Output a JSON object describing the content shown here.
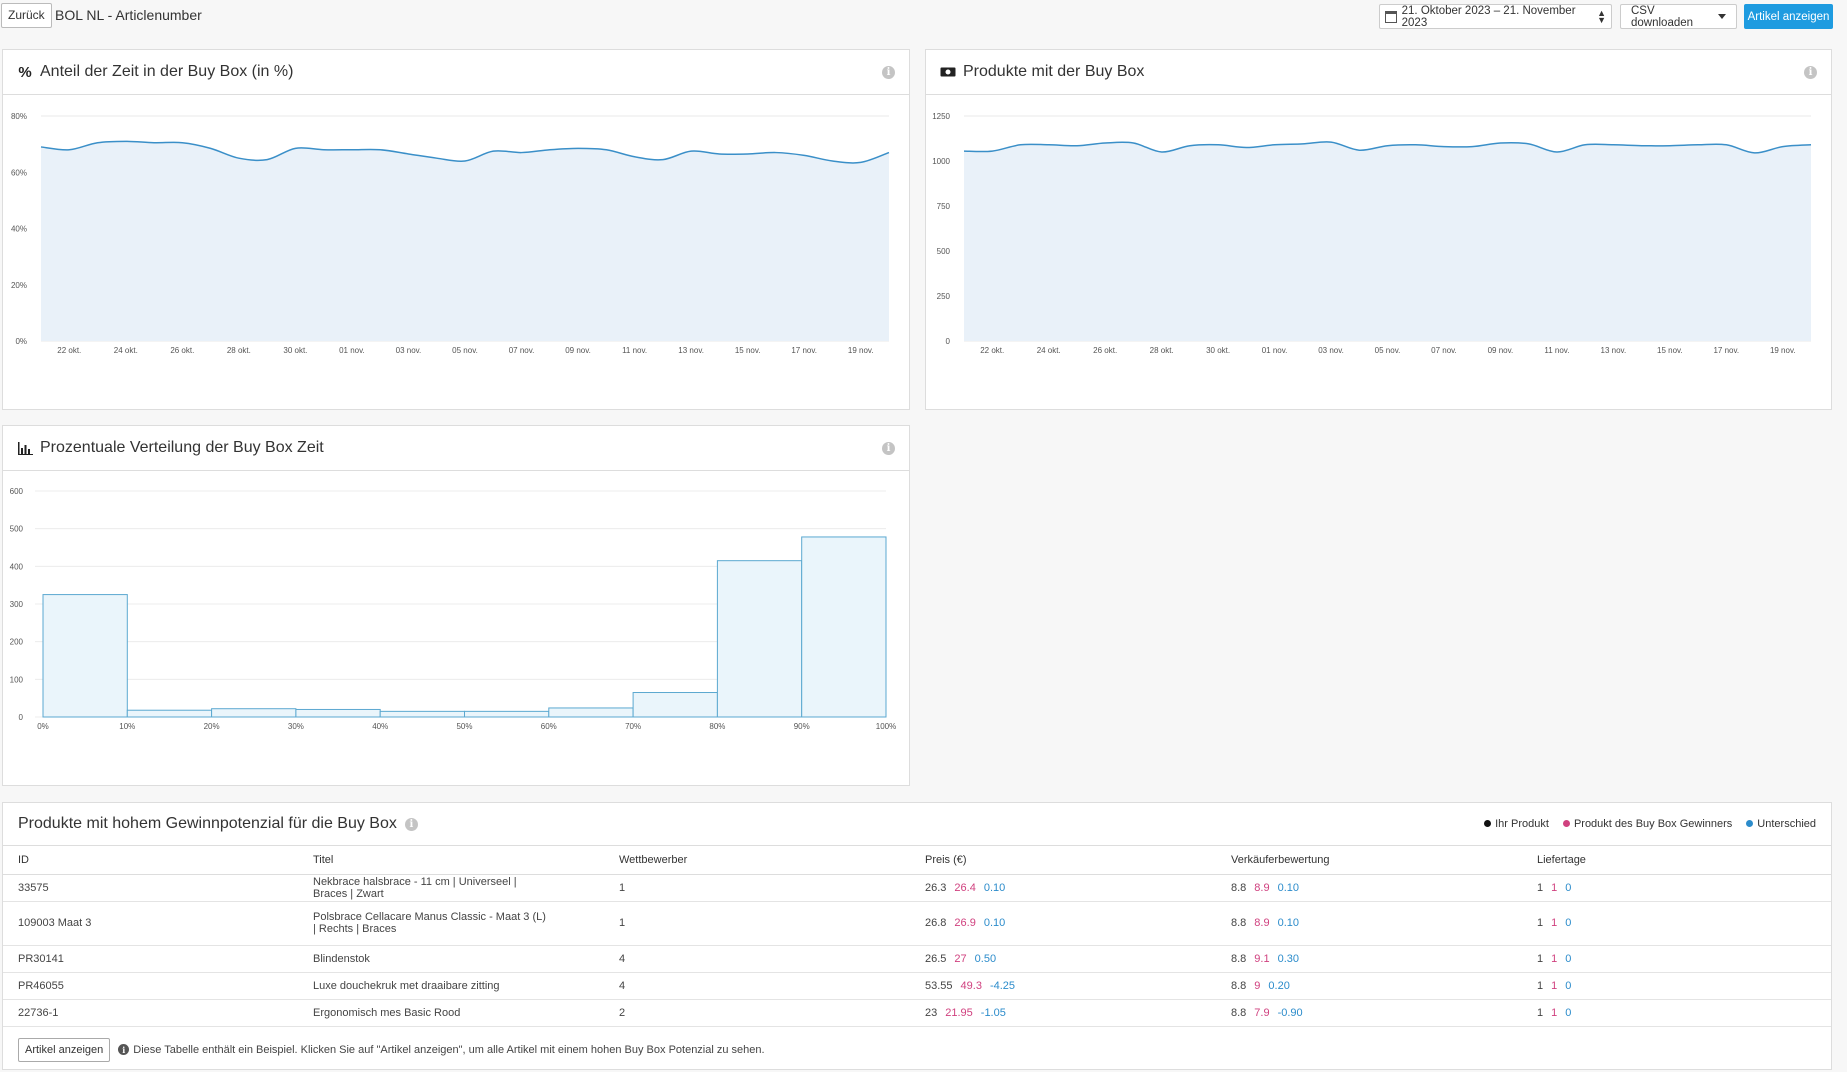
{
  "header": {
    "back_label": "Zurück",
    "title": "BOL NL - Articlenumber",
    "date_range": "21. Oktober 2023 – 21. November 2023",
    "csv_label": "CSV downloaden",
    "show_articles_label": "Artikel anzeigen"
  },
  "panels": {
    "share": {
      "title": "Anteil der Zeit in der Buy Box (in %)"
    },
    "products": {
      "title": "Produkte mit der Buy Box"
    },
    "distribution": {
      "title": "Prozentuale Verteilung der Buy Box Zeit"
    }
  },
  "chart_data": [
    {
      "type": "area",
      "x": [
        "21 okt.",
        "22 okt.",
        "23 okt.",
        "24 okt.",
        "25 okt.",
        "26 okt.",
        "27 okt.",
        "28 okt.",
        "29 okt.",
        "30 okt.",
        "31 okt.",
        "01 nov.",
        "02 nov.",
        "03 nov.",
        "04 nov.",
        "05 nov.",
        "06 nov.",
        "07 nov.",
        "08 nov.",
        "09 nov.",
        "10 nov.",
        "11 nov.",
        "12 nov.",
        "13 nov.",
        "14 nov.",
        "15 nov.",
        "16 nov.",
        "17 nov.",
        "18 nov.",
        "19 nov.",
        "20 nov."
      ],
      "tick_labels": [
        "22 okt.",
        "24 okt.",
        "26 okt.",
        "28 okt.",
        "30 okt.",
        "01 nov.",
        "03 nov.",
        "05 nov.",
        "07 nov.",
        "09 nov.",
        "11 nov.",
        "13 nov.",
        "15 nov.",
        "17 nov.",
        "19 nov."
      ],
      "values": [
        69,
        68,
        70.5,
        71,
        70.5,
        70.5,
        68.5,
        65,
        64.5,
        68.5,
        68,
        68,
        68,
        66.5,
        65,
        64,
        67.5,
        67,
        68,
        68.5,
        68,
        65.5,
        64.5,
        67.5,
        66.5,
        66.5,
        67,
        66,
        64,
        63.5,
        67
      ],
      "y_ticks": [
        "0%",
        "20%",
        "40%",
        "60%",
        "80%"
      ],
      "ylim": [
        0,
        80
      ],
      "color": "#3a8fc8",
      "fill": "#e9f1f9"
    },
    {
      "type": "area",
      "x": [
        "21 okt.",
        "22 okt.",
        "23 okt.",
        "24 okt.",
        "25 okt.",
        "26 okt.",
        "27 okt.",
        "28 okt.",
        "29 okt.",
        "30 okt.",
        "31 okt.",
        "01 nov.",
        "02 nov.",
        "03 nov.",
        "04 nov.",
        "05 nov.",
        "06 nov.",
        "07 nov.",
        "08 nov.",
        "09 nov.",
        "10 nov.",
        "11 nov.",
        "12 nov.",
        "13 nov.",
        "14 nov.",
        "15 nov.",
        "16 nov.",
        "17 nov.",
        "18 nov.",
        "19 nov.",
        "20 nov."
      ],
      "tick_labels": [
        "22 okt.",
        "24 okt.",
        "26 okt.",
        "28 okt.",
        "30 okt.",
        "01 nov.",
        "03 nov.",
        "05 nov.",
        "07 nov.",
        "09 nov.",
        "11 nov.",
        "13 nov.",
        "15 nov.",
        "17 nov.",
        "19 nov."
      ],
      "values": [
        1055,
        1055,
        1090,
        1090,
        1085,
        1100,
        1100,
        1050,
        1085,
        1090,
        1075,
        1090,
        1095,
        1105,
        1060,
        1085,
        1090,
        1080,
        1080,
        1100,
        1095,
        1050,
        1090,
        1090,
        1085,
        1085,
        1090,
        1090,
        1045,
        1080,
        1090
      ],
      "y_ticks": [
        "0",
        "250",
        "500",
        "750",
        "1000",
        "1250"
      ],
      "ylim": [
        0,
        1250
      ],
      "color": "#3a8fc8",
      "fill": "#e9f1f9"
    },
    {
      "type": "bar",
      "categories": [
        "0-10%",
        "10-20%",
        "20-30%",
        "30-40%",
        "40-50%",
        "50-60%",
        "60-70%",
        "70-80%",
        "80-90%",
        "90-100%"
      ],
      "x_ticks": [
        "0%",
        "10%",
        "20%",
        "30%",
        "40%",
        "50%",
        "60%",
        "70%",
        "80%",
        "90%",
        "100%"
      ],
      "values": [
        325,
        18,
        22,
        20,
        15,
        15,
        24,
        65,
        415,
        478
      ],
      "y_ticks": [
        "0",
        "100",
        "200",
        "300",
        "400",
        "500",
        "600"
      ],
      "ylim": [
        0,
        600
      ],
      "color": "#5ba8d0",
      "fill": "#eaf5fb"
    }
  ],
  "table": {
    "title": "Produkte mit hohem Gewinnpotenzial für die Buy Box",
    "legend": [
      {
        "label": "Ihr Produkt",
        "color": "#111111"
      },
      {
        "label": "Produkt des Buy Box Gewinners",
        "color": "#d0417f"
      },
      {
        "label": "Unterschied",
        "color": "#2c8ccb"
      }
    ],
    "columns": [
      "ID",
      "Titel",
      "Wettbewerber",
      "Preis (€)",
      "Verkäuferbewertung",
      "Liefertage"
    ],
    "rows": [
      {
        "id": "33575",
        "title": "Nekbrace halsbrace - 11 cm | Universeel | Braces | Zwart",
        "competitors": "1",
        "price": [
          "26.3",
          "26.4",
          "0.10"
        ],
        "rating": [
          "8.8",
          "8.9",
          "0.10"
        ],
        "days": [
          "1",
          "1",
          "0"
        ]
      },
      {
        "id": "109003 Maat 3",
        "title": "Polsbrace Cellacare Manus Classic - Maat 3 (L) | Rechts | Braces",
        "competitors": "1",
        "price": [
          "26.8",
          "26.9",
          "0.10"
        ],
        "rating": [
          "8.8",
          "8.9",
          "0.10"
        ],
        "days": [
          "1",
          "1",
          "0"
        ]
      },
      {
        "id": "PR30141",
        "title": "Blindenstok",
        "competitors": "4",
        "price": [
          "26.5",
          "27",
          "0.50"
        ],
        "rating": [
          "8.8",
          "9.1",
          "0.30"
        ],
        "days": [
          "1",
          "1",
          "0"
        ]
      },
      {
        "id": "PR46055",
        "title": "Luxe douchekruk met draaibare zitting",
        "competitors": "4",
        "price": [
          "53.55",
          "49.3",
          "-4.25"
        ],
        "rating": [
          "8.8",
          "9",
          "0.20"
        ],
        "days": [
          "1",
          "1",
          "0"
        ]
      },
      {
        "id": "22736-1",
        "title": "Ergonomisch mes Basic Rood",
        "competitors": "2",
        "price": [
          "23",
          "21.95",
          "-1.05"
        ],
        "rating": [
          "8.8",
          "7.9",
          "-0.90"
        ],
        "days": [
          "1",
          "1",
          "0"
        ]
      }
    ],
    "footer_button": "Artikel anzeigen",
    "footer_note": "Diese Tabelle enthält ein Beispiel. Klicken Sie auf \"Artikel anzeigen\", um alle Artikel mit einem hohen Buy Box Potenzial zu sehen."
  }
}
